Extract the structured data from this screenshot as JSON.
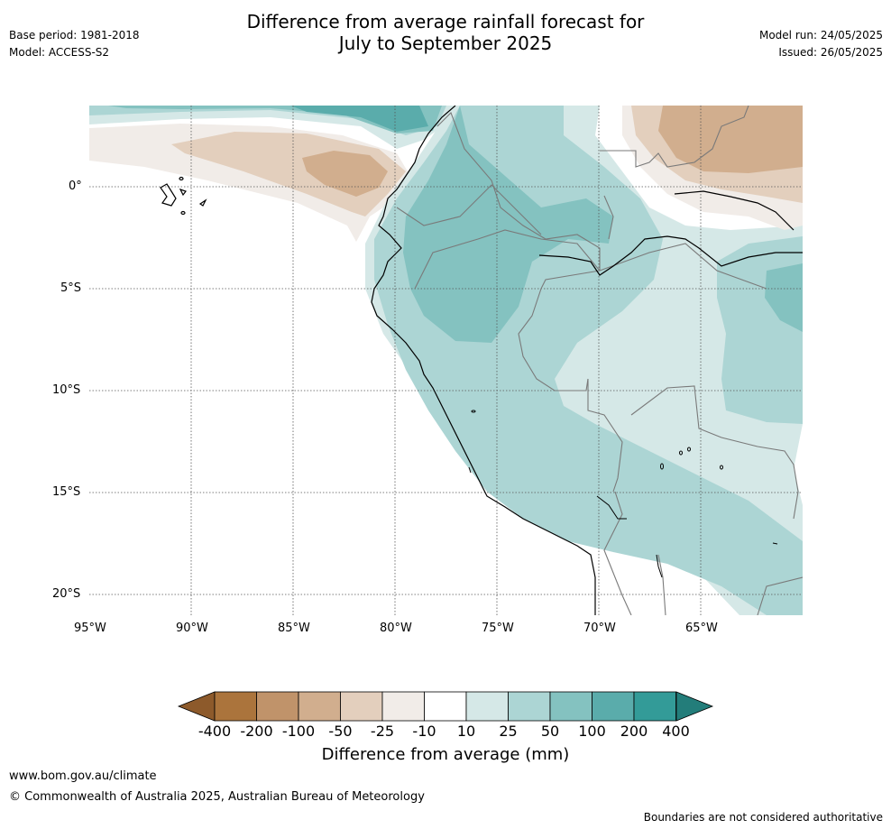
{
  "title_line1": "Difference from average rainfall forecast for",
  "title_line2": "July to September 2025",
  "base_period": "Base period: 1981-2018",
  "model": "Model: ACCESS-S2",
  "model_run": "Model run: 24/05/2025",
  "issued": "Issued: 26/05/2025",
  "lat_labels": [
    "0°",
    "5°S",
    "10°S",
    "15°S",
    "20°S"
  ],
  "lon_labels": [
    "95°W",
    "90°W",
    "85°W",
    "80°W",
    "75°W",
    "70°W",
    "65°W"
  ],
  "colorbar": {
    "ticks": [
      "-400",
      "-200",
      "-100",
      "-50",
      "-25",
      "-10",
      "10",
      "25",
      "50",
      "100",
      "200",
      "400"
    ],
    "colors": [
      "#ab743c",
      "#c0936a",
      "#d1ae8e",
      "#e3cfbd",
      "#f1ece8",
      "#ffffff",
      "#d5e8e7",
      "#acd5d4",
      "#84c2c0",
      "#5aacab",
      "#339b98"
    ],
    "under_color": "#8d5a2b",
    "over_color": "#237d7a",
    "label": "Difference from average (mm)"
  },
  "website": "www.bom.gov.au/climate",
  "copyright": "© Commonwealth of Australia 2025, Australian Bureau of Meteorology",
  "disclaimer": "Boundaries are not considered authoritative"
}
